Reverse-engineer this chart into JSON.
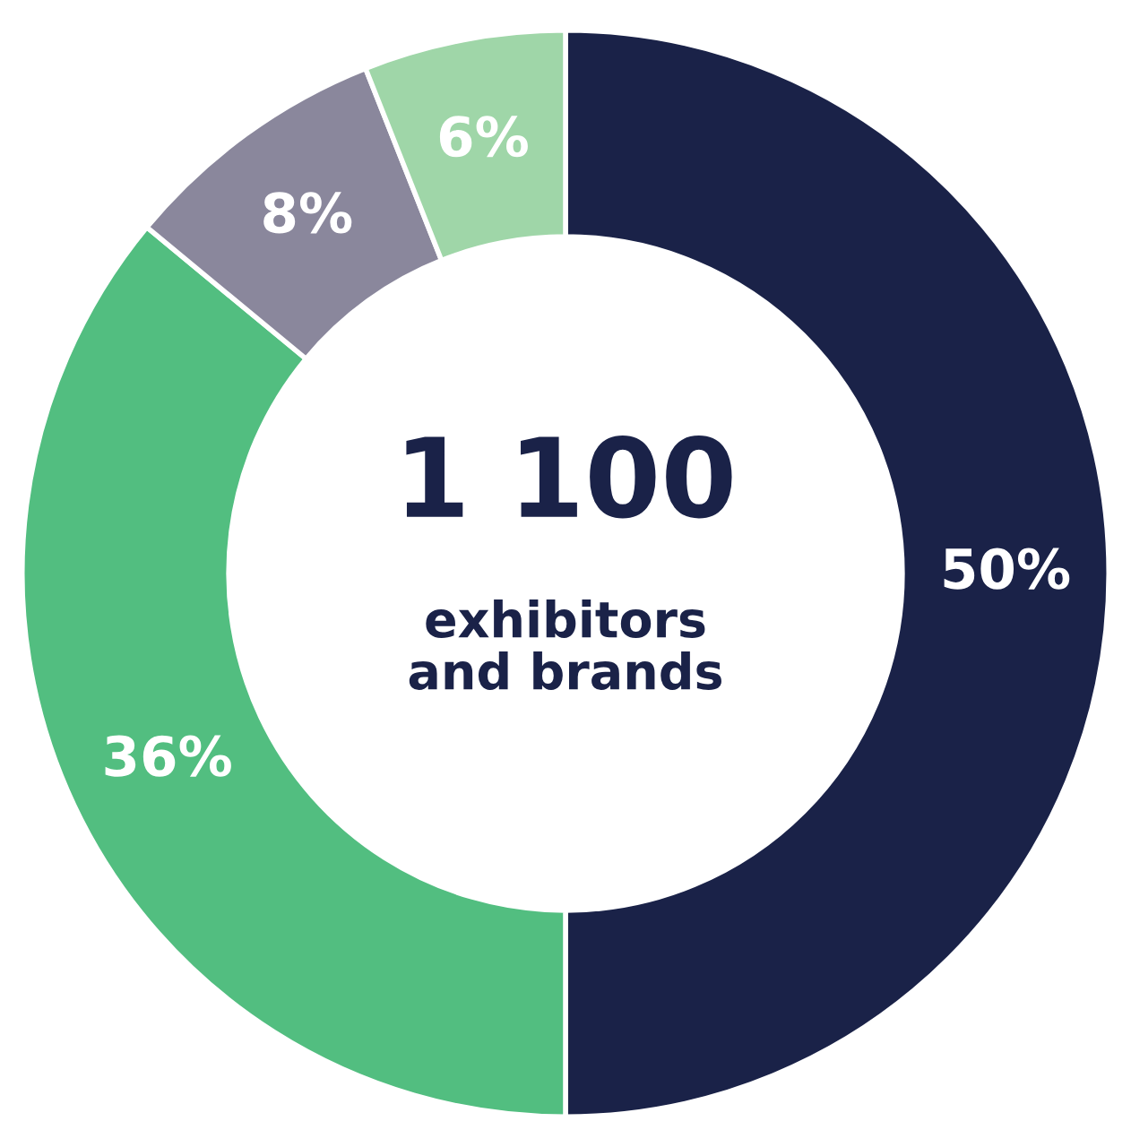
{
  "chart_data": {
    "type": "donut",
    "categories": [
      null,
      null,
      null,
      null
    ],
    "values": [
      50,
      36,
      8,
      6
    ],
    "colors": [
      "#1a2248",
      "#52be80",
      "#8a879c",
      "#9fd6a8"
    ],
    "value_labels": [
      "50%",
      "36%",
      "8%",
      "6%"
    ],
    "annotations": [
      "1 100",
      "exhibitors\nand brands"
    ]
  }
}
